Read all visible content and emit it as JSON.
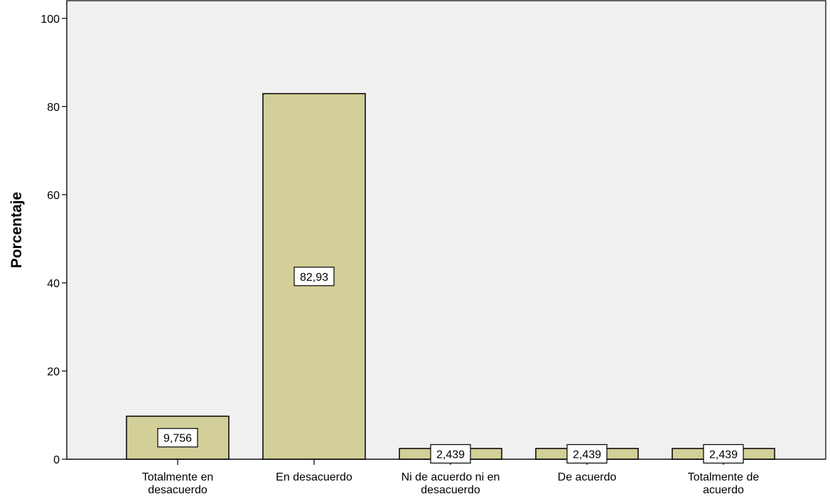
{
  "chart_data": {
    "type": "bar",
    "title": "",
    "xlabel": "",
    "ylabel": "Porcentaje",
    "categories": [
      [
        "Totalmente en",
        "desacuerdo"
      ],
      [
        "En desacuerdo"
      ],
      [
        "Ni de acuerdo ni en",
        "desacuerdo"
      ],
      [
        "De acuerdo"
      ],
      [
        "Totalmente de",
        "acuerdo"
      ]
    ],
    "values": [
      9.756,
      82.93,
      2.439,
      2.439,
      2.439
    ],
    "data_labels": [
      "9,756",
      "82,93",
      "2,439",
      "2,439",
      "2,439"
    ],
    "ylim": [
      0,
      104
    ],
    "yticks": [
      0,
      20,
      40,
      60,
      80,
      100
    ],
    "ytick_labels": [
      "0",
      "20",
      "40",
      "60",
      "80",
      "100"
    ],
    "grid": false,
    "legend": "none",
    "colors": {
      "bar_fill": "#d3cf98",
      "bar_stroke": "#000000",
      "plot_background": "#f0f0f0",
      "label_box_fill": "#ffffff"
    }
  }
}
